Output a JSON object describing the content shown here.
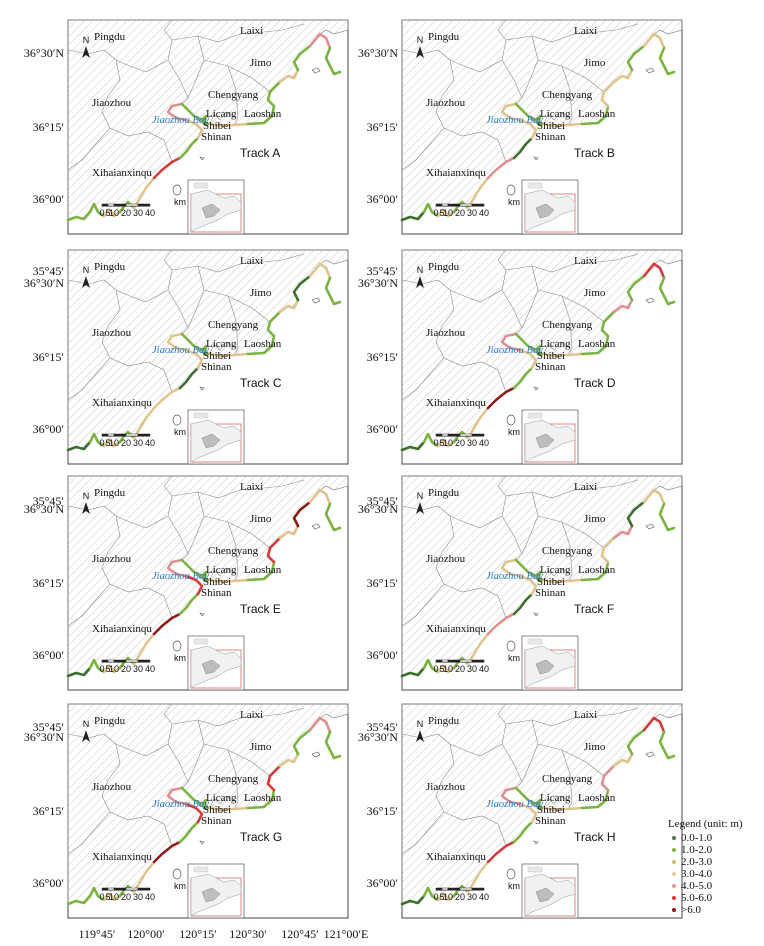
{
  "panels": [
    {
      "label": "Track A",
      "segments": [
        "green",
        "green",
        "tan",
        "green",
        "tan",
        "red",
        "green",
        "tan",
        "pink",
        "green",
        "green",
        "tan",
        "green",
        "green",
        "tan",
        "green",
        "pink",
        "green"
      ]
    },
    {
      "label": "Track B",
      "segments": [
        "darkgreen",
        "green",
        "tan",
        "green",
        "tan",
        "pink",
        "darkgreen",
        "tan",
        "tan",
        "green",
        "green",
        "tan",
        "green",
        "tan",
        "tan",
        "green",
        "tan",
        "green"
      ]
    },
    {
      "label": "Track C",
      "segments": [
        "darkgreen",
        "green",
        "tan",
        "green",
        "tan",
        "tan",
        "darkgreen",
        "tan",
        "tan",
        "green",
        "green",
        "tan",
        "green",
        "green",
        "tan",
        "darkgreen",
        "tan",
        "green"
      ]
    },
    {
      "label": "Track D",
      "segments": [
        "darkgreen",
        "green",
        "tan",
        "green",
        "tan",
        "darkred",
        "green",
        "tan",
        "pink",
        "green",
        "green",
        "tan",
        "green",
        "green",
        "pink",
        "green",
        "red",
        "green"
      ]
    },
    {
      "label": "Track E",
      "segments": [
        "darkgreen",
        "green",
        "tan",
        "green",
        "tan",
        "darkred",
        "green",
        "red",
        "pink",
        "green",
        "green",
        "tan",
        "green",
        "red",
        "tan",
        "darkred",
        "tan",
        "green"
      ]
    },
    {
      "label": "Track F",
      "segments": [
        "darkgreen",
        "green",
        "tan",
        "green",
        "tan",
        "pink",
        "darkgreen",
        "tan",
        "tan",
        "green",
        "green",
        "tan",
        "green",
        "tan",
        "pink",
        "darkgreen",
        "tan",
        "green"
      ]
    },
    {
      "label": "Track G",
      "segments": [
        "green",
        "green",
        "tan",
        "green",
        "tan",
        "darkred",
        "green",
        "red",
        "pink",
        "green",
        "green",
        "tan",
        "green",
        "red",
        "tan",
        "green",
        "pink",
        "green"
      ]
    },
    {
      "label": "Track H",
      "segments": [
        "darkgreen",
        "green",
        "tan",
        "green",
        "tan",
        "red",
        "green",
        "tan",
        "pink",
        "green",
        "green",
        "tan",
        "green",
        "pink",
        "tan",
        "green",
        "red",
        "green"
      ]
    }
  ],
  "place_names": {
    "pingdu": "Pingdu",
    "laixi": "Laixi",
    "jimo": "Jimo",
    "jiaozhou": "Jiaozhou",
    "chengyang": "Chengyang",
    "licang": "Licang",
    "laoshan": "Laoshan",
    "shibei": "Shibei",
    "shinan": "Shinan",
    "xihaian": "Xihaianxinqu",
    "bay": "Jiaozhou Bay"
  },
  "lat_labels": [
    "36°30′N",
    "36°15′",
    "36°00′",
    "35°45′"
  ],
  "lon_labels": [
    "119°45′",
    "120°00′",
    "120°15′",
    "120°30′",
    "120°45′",
    "121°00′E"
  ],
  "scale_ticks": [
    "0",
    "5",
    "10",
    "20",
    "30",
    "40"
  ],
  "scale_unit": "km",
  "north_label": "N",
  "legend": {
    "title": "Legend (unit: m)",
    "items": [
      {
        "label": "0.0-1.0",
        "color": "#4a7d3a"
      },
      {
        "label": "1.0-2.0",
        "color": "#7bb342"
      },
      {
        "label": "2.0-3.0",
        "color": "#c6c373"
      },
      {
        "label": "3.0-4.0",
        "color": "#e3c89a"
      },
      {
        "label": "4.0-5.0",
        "color": "#dd9b9b"
      },
      {
        "label": "5.0-6.0",
        "color": "#d83b3b"
      },
      {
        "label": ">6.0",
        "color": "#8b1a1a"
      }
    ]
  },
  "colors": {
    "green": "#7bb342",
    "darkgreen": "#3c6e2e",
    "tan": "#e0c48e",
    "pink": "#de8f8f",
    "red": "#d43a3a",
    "darkred": "#8b1a1a",
    "bay_text": "#2a78c4",
    "hatch": "#c8c8c8",
    "boundary": "#8a8a8a"
  }
}
